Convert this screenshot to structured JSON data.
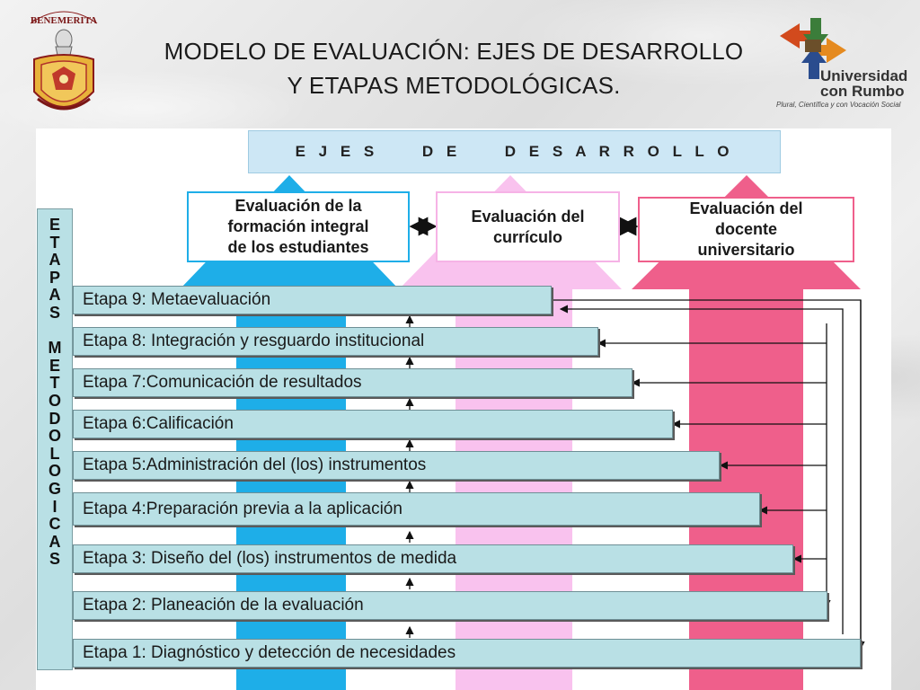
{
  "title": {
    "line1": "MODELO DE EVALUACIÓN: EJES DE DESARROLLO",
    "line2": "Y ETAPAS METODOLÓGICAS."
  },
  "logos": {
    "left_banner": "BENEMERITA",
    "right_name": "Universidad",
    "right_name2": "con Rumbo",
    "right_tagline": "Plural, Científica y con Vocación Social"
  },
  "ejes_header": "E J E S     D E     D E S A R R O L L O",
  "axes": [
    {
      "label": "Evaluación de la\nformación integral\n de los estudiantes",
      "color": "#1eaee8"
    },
    {
      "label": "Evaluación del\ncurrículo",
      "color": "#f9c2ee"
    },
    {
      "label": "Evaluación del\ndocente\nuniversitario",
      "color": "#ef5f8b"
    }
  ],
  "etapas_vertical": "ETAPAS METODOLOGICAS",
  "etapas": [
    {
      "label": "Etapa 9: Metaevaluación"
    },
    {
      "label": "Etapa 8: Integración y resguardo institucional"
    },
    {
      "label": "Etapa 7:Comunicación de resultados"
    },
    {
      "label": "Etapa 6:Calificación"
    },
    {
      "label": "Etapa 5:Administración del (los) instrumentos"
    },
    {
      "label": "Etapa 4:Preparación previa a la aplicación"
    },
    {
      "label": "Etapa 3: Diseño del (los) instrumentos de medida"
    },
    {
      "label": "Etapa 2: Planeación de la evaluación"
    },
    {
      "label": "Etapa 1: Diagnóstico y detección de necesidades"
    }
  ]
}
